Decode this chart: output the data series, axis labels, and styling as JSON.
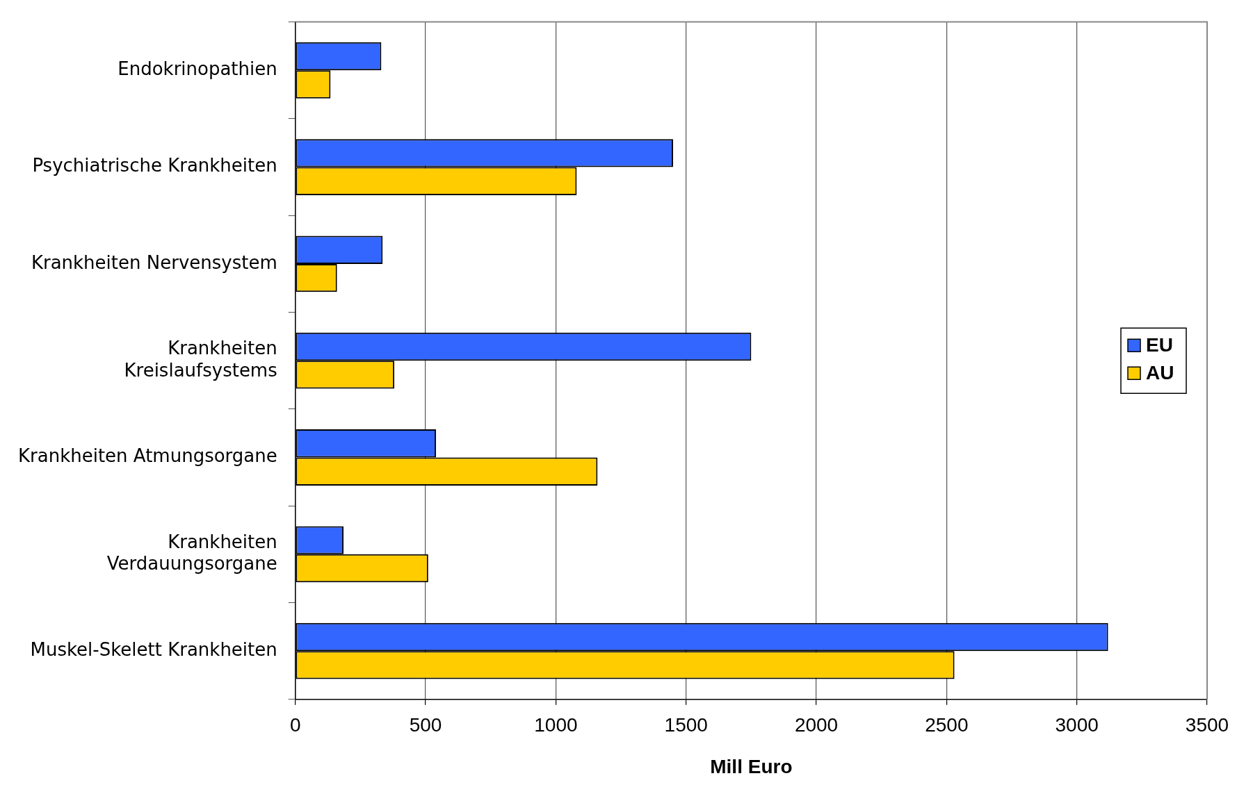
{
  "chart_data": {
    "type": "bar",
    "orientation": "horizontal",
    "xlabel": "Mill Euro",
    "categories": [
      "Endokrinopathien",
      "Psychiatrische Krankheiten",
      "Krankheiten Nervensystem",
      "Krankheiten\nKreislaufsystems",
      "Krankheiten Atmungsorgane",
      "Krankheiten\nVerdauungsorgane",
      "Muskel-Skelett Krankheiten"
    ],
    "series": [
      {
        "name": "EU",
        "color": "#3366ff",
        "values": [
          330,
          1450,
          335,
          1750,
          540,
          185,
          3120
        ]
      },
      {
        "name": "AU",
        "color": "#ffcc00",
        "values": [
          135,
          1080,
          160,
          380,
          1160,
          510,
          2530
        ]
      }
    ],
    "xlim": [
      0,
      3500
    ],
    "xticks": [
      0,
      500,
      1000,
      1500,
      2000,
      2500,
      3000,
      3500
    ],
    "grid": "x",
    "legend": "right"
  }
}
